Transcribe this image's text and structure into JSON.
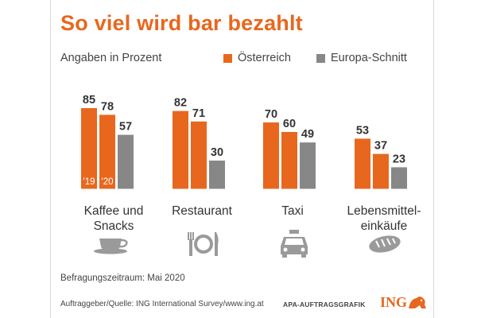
{
  "title": "So viel wird bar bezahlt",
  "subtitle": "Angaben in Prozent",
  "legend": {
    "at_label": "Österreich",
    "eu_label": "Europa-Schnitt",
    "at_color": "#e8671e",
    "eu_color": "#878787"
  },
  "chart_data": {
    "type": "bar",
    "title": "So viel wird bar bezahlt",
    "ylabel": "Angaben in Prozent",
    "ylim": [
      0,
      100
    ],
    "categories": [
      "Kaffee und Snacks",
      "Restaurant",
      "Taxi",
      "Lebensmittel-einkäufe"
    ],
    "series": [
      {
        "name": "Österreich '19",
        "values": [
          85,
          82,
          70,
          53
        ]
      },
      {
        "name": "Österreich '20",
        "values": [
          78,
          71,
          60,
          37
        ]
      },
      {
        "name": "Europa-Schnitt",
        "values": [
          57,
          30,
          49,
          23
        ]
      }
    ],
    "bar_annotations": [
      "'19",
      "'20"
    ]
  },
  "categories_display": {
    "kaffee_line1": "Kaffee und",
    "kaffee_line2": "Snacks",
    "restaurant": "Restaurant",
    "taxi": "Taxi",
    "lebensmittel_line1": "Lebensmittel-",
    "lebensmittel_line2": "einkäufe"
  },
  "icons": [
    "coffee-cup-icon",
    "plate-cutlery-icon",
    "taxi-icon",
    "bread-icon"
  ],
  "footnote": "Befragungszeitraum: Mai 2020",
  "source": "Auftraggeber/Quelle: ING International Survey/www.ing.at",
  "credit": "APA-AUFTRAGSGRAFIK",
  "brand": "ING"
}
